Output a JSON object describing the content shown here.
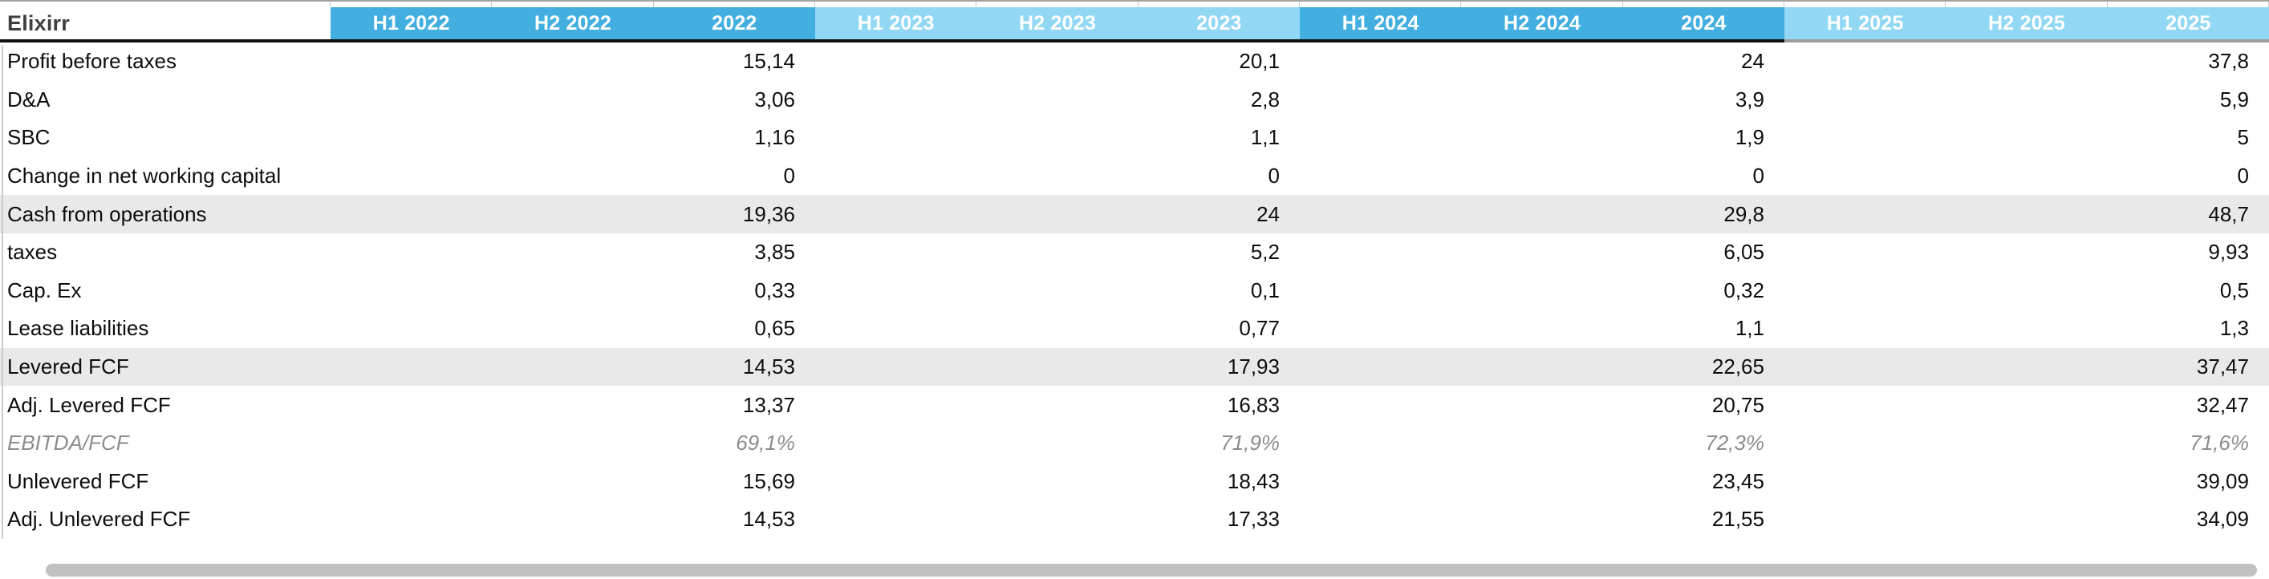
{
  "sheet": {
    "title": "Elixirr",
    "year_groups": [
      {
        "year": "2022",
        "tone": "dark",
        "headers": [
          "H1 2022",
          "H2 2022",
          "2022"
        ]
      },
      {
        "year": "2023",
        "tone": "light",
        "headers": [
          "H1 2023",
          "H2 2023",
          "2023"
        ]
      },
      {
        "year": "2024",
        "tone": "dark",
        "headers": [
          "H1 2024",
          "H2 2024",
          "2024"
        ]
      },
      {
        "year": "2025",
        "tone": "light",
        "headers": [
          "H1 2025",
          "H2 2025",
          "2025"
        ]
      }
    ],
    "rows": [
      {
        "label": "Profit before taxes",
        "style": "normal",
        "values": [
          "15,14",
          "20,1",
          "24",
          "37,8"
        ]
      },
      {
        "label": "D&A",
        "style": "normal",
        "values": [
          "3,06",
          "2,8",
          "3,9",
          "5,9"
        ]
      },
      {
        "label": "SBC",
        "style": "normal",
        "values": [
          "1,16",
          "1,1",
          "1,9",
          "5"
        ]
      },
      {
        "label": "Change in net working capital",
        "style": "normal",
        "values": [
          "0",
          "0",
          "0",
          "0"
        ]
      },
      {
        "label": "Cash from operations",
        "style": "band",
        "values": [
          "19,36",
          "24",
          "29,8",
          "48,7"
        ]
      },
      {
        "label": "taxes",
        "style": "normal",
        "values": [
          "3,85",
          "5,2",
          "6,05",
          "9,93"
        ]
      },
      {
        "label": "Cap. Ex",
        "style": "normal",
        "values": [
          "0,33",
          "0,1",
          "0,32",
          "0,5"
        ]
      },
      {
        "label": "Lease liabilities",
        "style": "normal",
        "values": [
          "0,65",
          "0,77",
          "1,1",
          "1,3"
        ]
      },
      {
        "label": "Levered FCF",
        "style": "band",
        "values": [
          "14,53",
          "17,93",
          "22,65",
          "37,47"
        ]
      },
      {
        "label": "Adj. Levered FCF",
        "style": "normal",
        "values": [
          "13,37",
          "16,83",
          "20,75",
          "32,47"
        ]
      },
      {
        "label": "EBITDA/FCF",
        "style": "ratio",
        "values": [
          "69,1%",
          "71,9%",
          "72,3%",
          "71,6%"
        ]
      },
      {
        "label": "Unlevered FCF",
        "style": "normal",
        "values": [
          "15,69",
          "18,43",
          "23,45",
          "39,09"
        ]
      },
      {
        "label": "Adj. Unlevered FCF",
        "style": "normal",
        "values": [
          "14,53",
          "17,33",
          "21,55",
          "34,09"
        ]
      }
    ]
  },
  "colors": {
    "header_dark_blue": "#43afe0",
    "header_light_blue": "#92d8f4",
    "header_text": "#ffffff",
    "title_text": "#3f3f3f",
    "band_gray": "#e9e9e9",
    "ratio_text_gray": "#8c8c8c",
    "header_underline_black": "#111111",
    "header_underline_gray": "#9e9e9e",
    "scrollbar_gray": "#c1c1c1"
  }
}
